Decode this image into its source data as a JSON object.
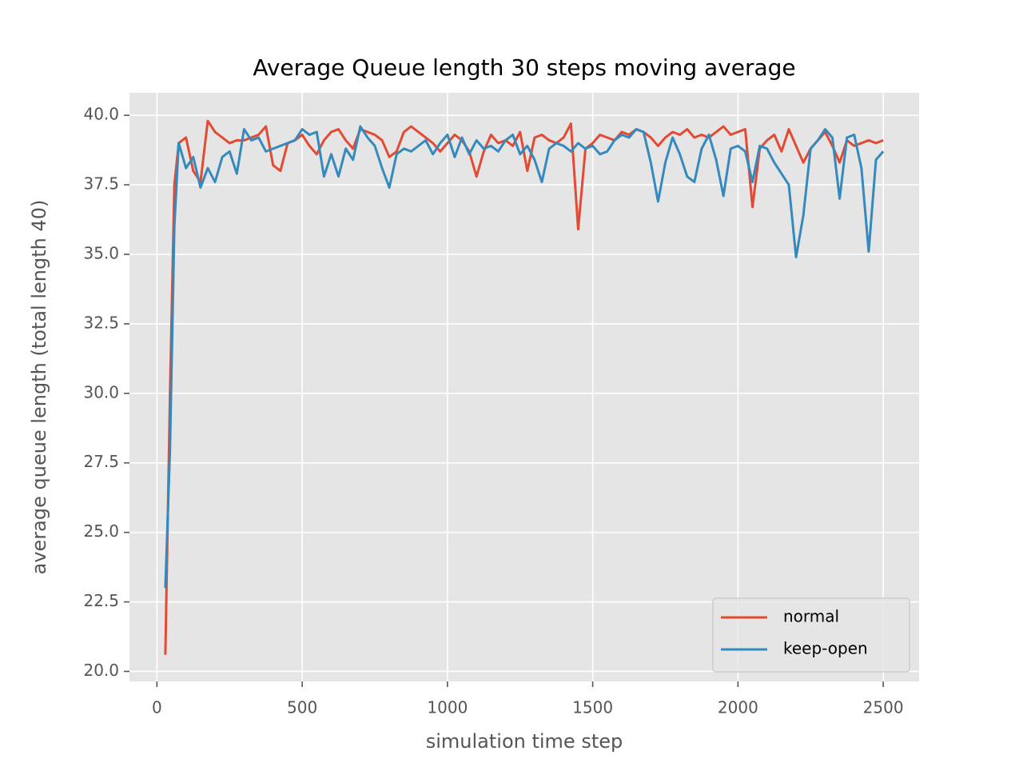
{
  "chart_data": {
    "type": "line",
    "title": "Average Queue length 30 steps moving average",
    "x_label": "simulation time step",
    "y_label": "average queue length (total length 40)",
    "x": [
      29,
      45,
      60,
      75,
      100,
      125,
      150,
      175,
      200,
      225,
      250,
      275,
      300,
      325,
      350,
      375,
      400,
      425,
      450,
      475,
      500,
      525,
      550,
      575,
      600,
      625,
      650,
      675,
      700,
      725,
      750,
      775,
      800,
      825,
      850,
      875,
      900,
      925,
      950,
      975,
      1000,
      1025,
      1050,
      1075,
      1100,
      1125,
      1150,
      1175,
      1200,
      1225,
      1250,
      1275,
      1300,
      1325,
      1350,
      1375,
      1400,
      1425,
      1450,
      1475,
      1500,
      1525,
      1550,
      1575,
      1600,
      1625,
      1650,
      1675,
      1700,
      1725,
      1750,
      1775,
      1800,
      1825,
      1850,
      1875,
      1900,
      1925,
      1950,
      1975,
      2000,
      2025,
      2050,
      2075,
      2100,
      2125,
      2150,
      2175,
      2200,
      2225,
      2250,
      2275,
      2300,
      2325,
      2350,
      2375,
      2400,
      2425,
      2450,
      2475,
      2500
    ],
    "series": [
      {
        "name": "normal",
        "color": "#e24a33",
        "values": [
          20.6,
          30,
          37.5,
          39,
          39.2,
          38,
          37.6,
          39.8,
          39.4,
          39.2,
          39,
          39.1,
          39.1,
          39.2,
          39.3,
          39.6,
          38.2,
          38,
          39,
          39.1,
          39.3,
          38.9,
          38.6,
          39.1,
          39.4,
          39.5,
          39.1,
          38.8,
          39.5,
          39.4,
          39.3,
          39.1,
          38.5,
          38.7,
          39.4,
          39.6,
          39.4,
          39.2,
          39,
          38.7,
          39,
          39.3,
          39.1,
          38.7,
          37.8,
          38.7,
          39.3,
          39,
          39.1,
          38.9,
          39.4,
          38,
          39.2,
          39.3,
          39.1,
          39,
          39.2,
          39.7,
          35.9,
          38.8,
          39,
          39.3,
          39.2,
          39.1,
          39.4,
          39.3,
          39.5,
          39.4,
          39.2,
          38.9,
          39.2,
          39.4,
          39.3,
          39.5,
          39.2,
          39.3,
          39.2,
          39.4,
          39.6,
          39.3,
          39.4,
          39.5,
          36.7,
          38.8,
          39.1,
          39.3,
          38.7,
          39.5,
          38.9,
          38.3,
          38.8,
          39.1,
          39.4,
          38.9,
          38.3,
          39.1,
          38.9,
          39,
          39.1,
          39,
          39.1
        ]
      },
      {
        "name": "keep-open",
        "color": "#348abd",
        "values": [
          23,
          28,
          36,
          39,
          38.1,
          38.5,
          37.4,
          38.1,
          37.6,
          38.5,
          38.7,
          37.9,
          39.5,
          39.1,
          39.2,
          38.7,
          38.8,
          38.9,
          39,
          39.1,
          39.5,
          39.3,
          39.4,
          37.8,
          38.6,
          37.8,
          38.8,
          38.4,
          39.6,
          39.2,
          38.9,
          38.1,
          37.4,
          38.6,
          38.8,
          38.7,
          38.9,
          39.1,
          38.6,
          39,
          39.3,
          38.5,
          39.2,
          38.6,
          39.1,
          38.8,
          38.9,
          38.7,
          39.1,
          39.3,
          38.6,
          38.9,
          38.4,
          37.6,
          38.8,
          39,
          38.9,
          38.7,
          39,
          38.8,
          38.9,
          38.6,
          38.7,
          39.1,
          39.3,
          39.2,
          39.5,
          39.4,
          38.3,
          36.9,
          38.3,
          39.2,
          38.6,
          37.8,
          37.6,
          38.8,
          39.3,
          38.4,
          37.1,
          38.8,
          38.9,
          38.7,
          37.6,
          38.9,
          38.8,
          38.3,
          37.9,
          37.5,
          34.9,
          36.4,
          38.8,
          39.1,
          39.5,
          39.2,
          37,
          39.2,
          39.3,
          38.1,
          35.1,
          38.4,
          38.7
        ]
      }
    ],
    "xlim": [
      -94.5,
      2623.5
    ],
    "ylim": [
      19.64,
      40.81
    ],
    "xticks": [
      0,
      500,
      1000,
      1500,
      2000,
      2500
    ],
    "yticks": [
      {
        "value": 20,
        "label": "20.0"
      },
      22.5,
      {
        "value": 25,
        "label": "25.0"
      },
      27.5,
      {
        "value": 30,
        "label": "30.0"
      },
      32.5,
      {
        "value": 35,
        "label": "35.0"
      },
      37.5,
      {
        "value": 40,
        "label": "40.0"
      }
    ],
    "grid": true,
    "legend": "lower right"
  }
}
